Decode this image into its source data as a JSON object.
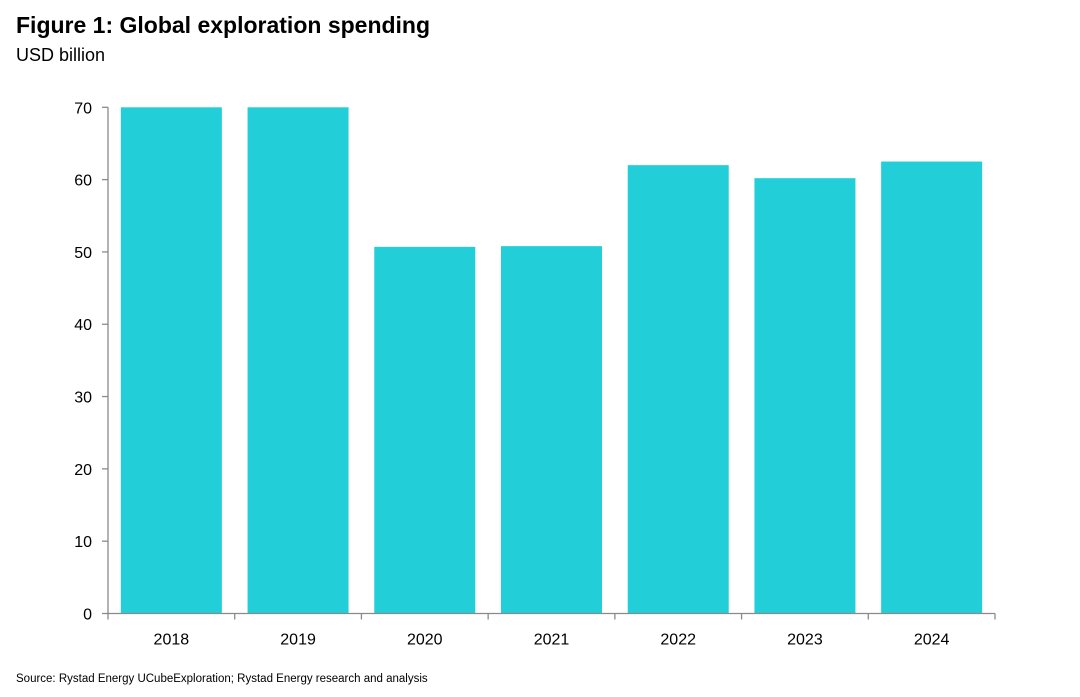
{
  "chart_data": {
    "type": "bar",
    "title": "Figure 1: Global exploration spending",
    "subtitle": "USD billion",
    "categories": [
      "2018",
      "2019",
      "2020",
      "2021",
      "2022",
      "2023",
      "2024"
    ],
    "values": [
      70.0,
      70.0,
      50.7,
      50.8,
      62.0,
      60.2,
      62.5
    ],
    "ylim": [
      0,
      70
    ],
    "yticks": [
      0,
      10,
      20,
      30,
      40,
      50,
      60,
      70
    ],
    "grid": false,
    "bar_color": "#22cfd9",
    "source": "Source: Rystad Energy UCubeExploration; Rystad Energy research and analysis"
  }
}
